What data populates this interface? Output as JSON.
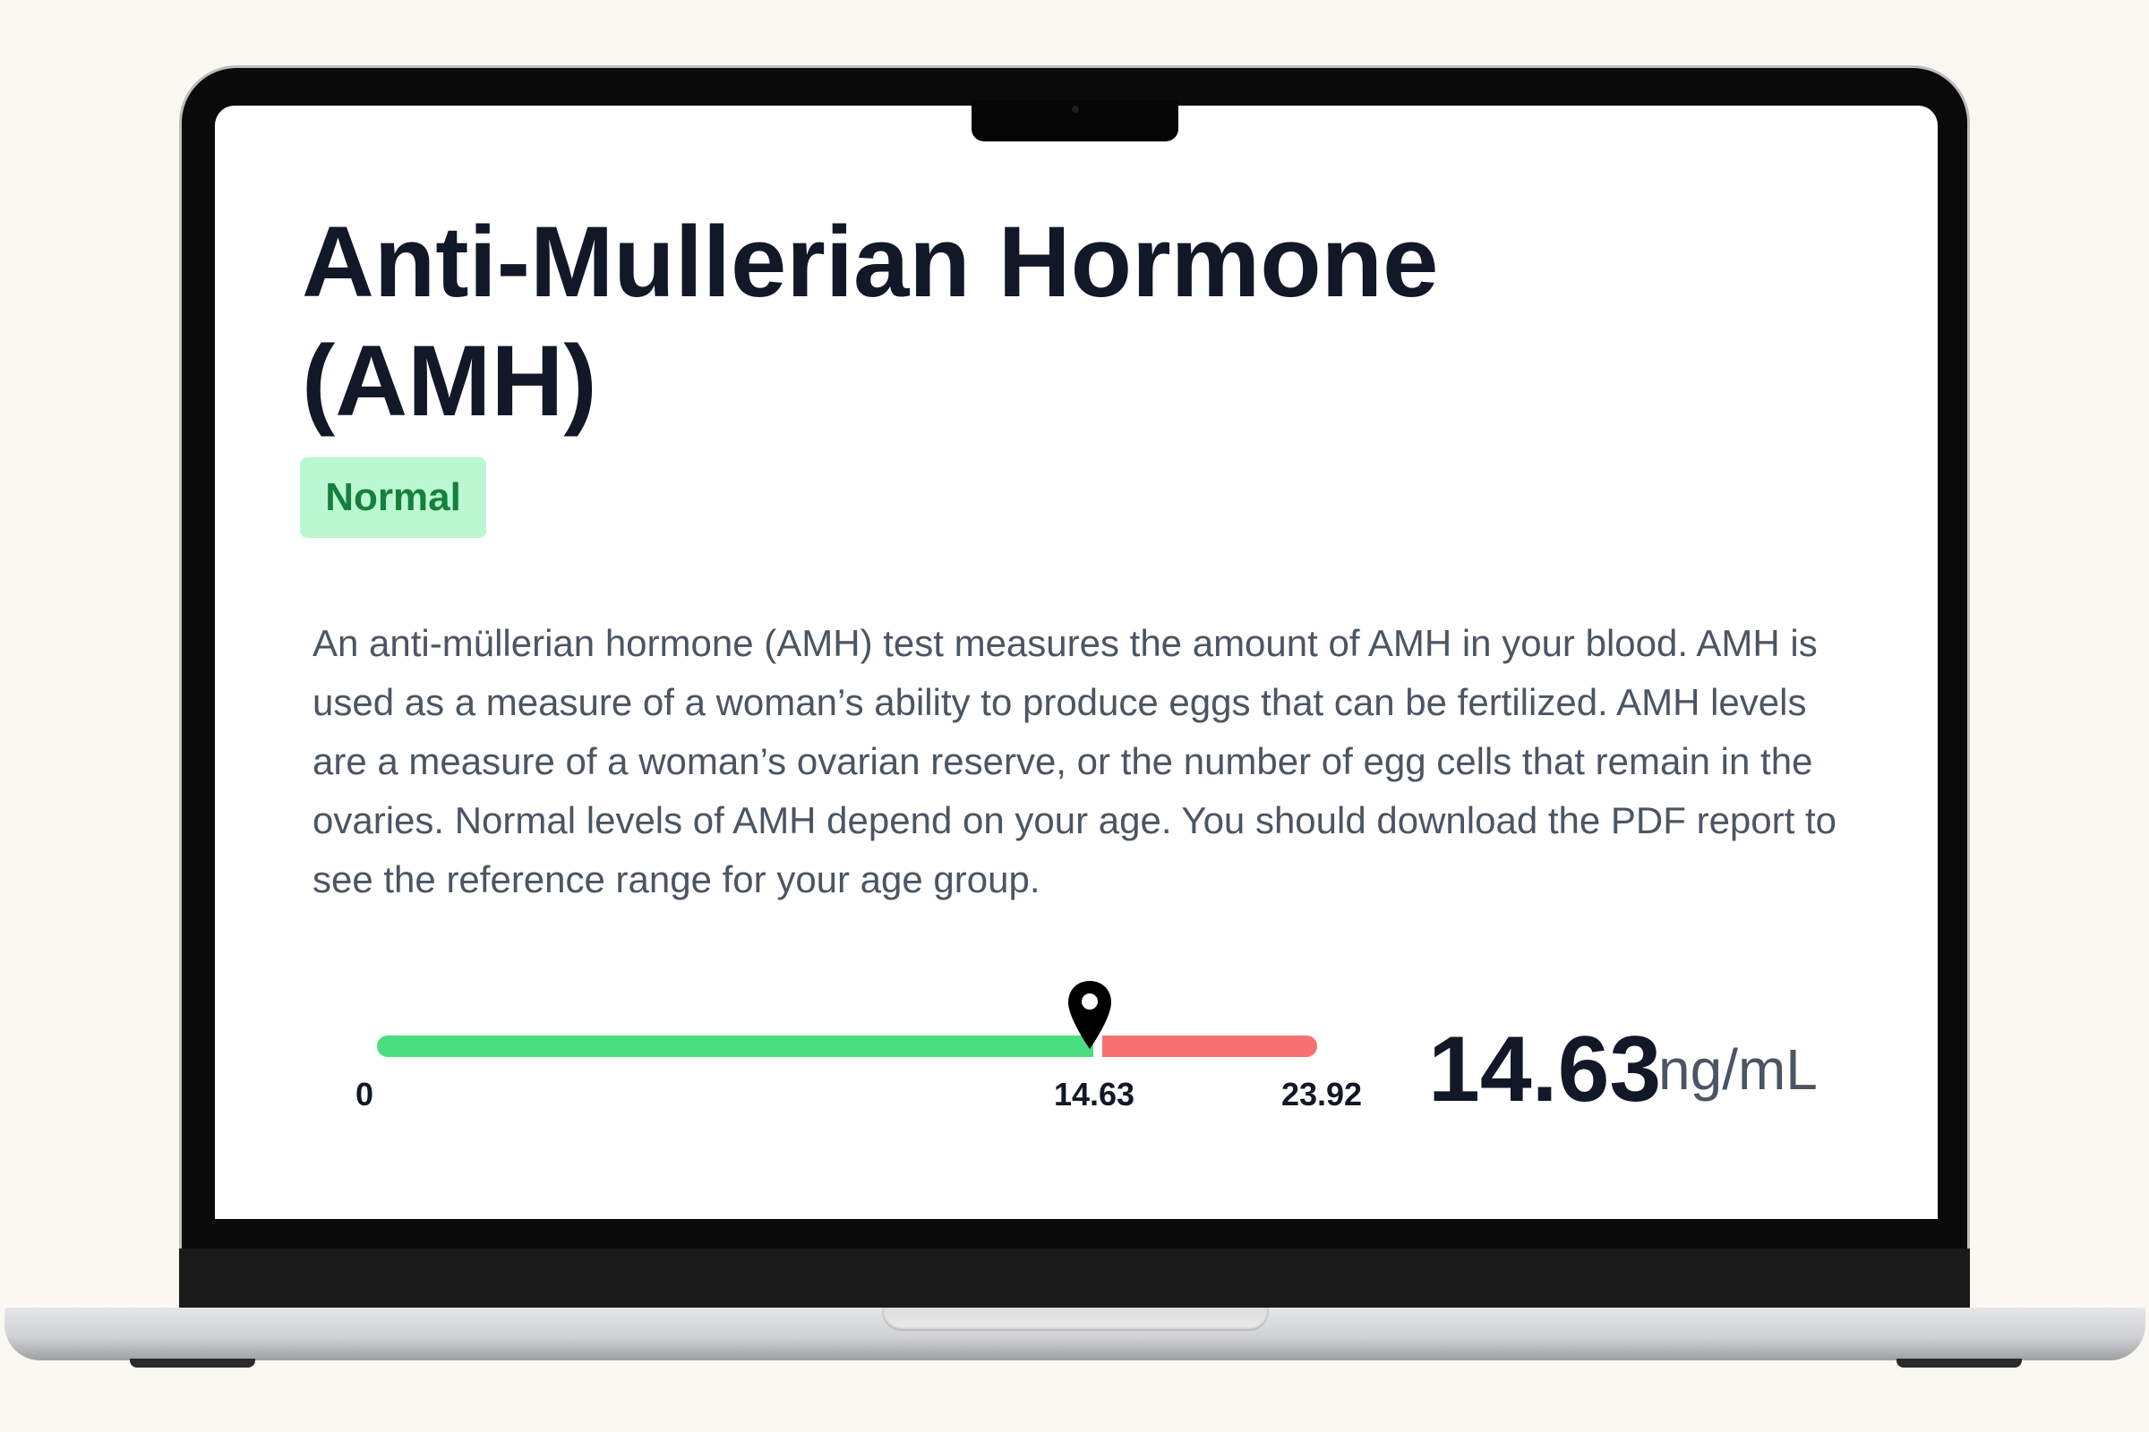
{
  "page": {
    "title": "Anti-Mullerian Hormone (AMH)",
    "status_badge": "Normal",
    "description": "An anti-müllerian hormone (AMH) test measures the amount of AMH in your blood. AMH is used as a measure of a woman’s ability to produce eggs that can be fertilized. AMH levels are a measure of a woman’s ovarian reserve, or the number of egg cells that remain in the ovaries. Normal levels of AMH depend on your age. You should download the PDF report to see the reference range for your age group."
  },
  "range_bar": {
    "min_label": "0",
    "marker_label": "14.63",
    "max_label": "23.92",
    "normal_color": "#4ade80",
    "high_color": "#f87171",
    "marker_icon": "map-pin-icon"
  },
  "result": {
    "value": "14.63",
    "unit": "ng/mL"
  },
  "colors": {
    "badge_bg": "#bbf7d0",
    "badge_text": "#15803d",
    "background": "#f9f9f1"
  }
}
